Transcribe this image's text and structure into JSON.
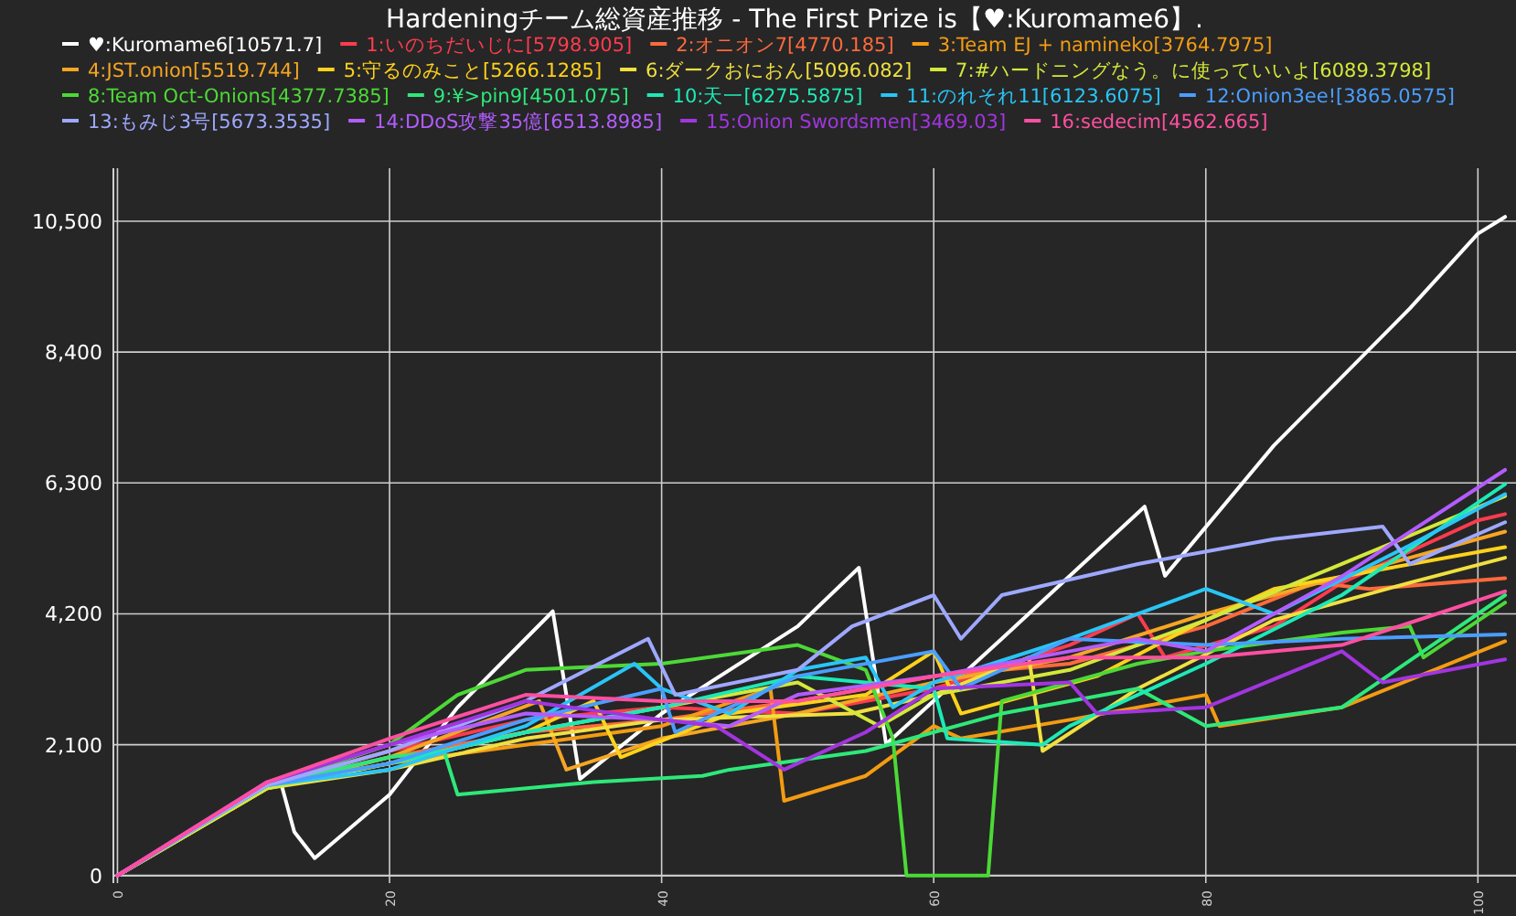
{
  "chart_data": {
    "type": "line",
    "title": "Hardeningチーム総資産推移 - The First Prize is【♥:Kuromame6】.",
    "legend": "top",
    "grid": true,
    "marker": "none",
    "line_style": "solid",
    "xlim": [
      -0.3,
      102.8
    ],
    "ylim": [
      -120,
      11350
    ],
    "xticks": [
      0,
      20,
      40,
      60,
      80,
      100
    ],
    "yticks": [
      0,
      {
        "value": 2100,
        "label": "2,100"
      },
      {
        "value": 4200,
        "label": "4,200"
      },
      {
        "value": 6300,
        "label": "6,300"
      },
      {
        "value": 8400,
        "label": "8,400"
      },
      {
        "value": 10500,
        "label": "10,500"
      }
    ],
    "series": [
      {
        "name": "♥:Kuromame6[10571.7]",
        "color": "#ffffff",
        "x": [
          0,
          11,
          12,
          13,
          14.5,
          20,
          25,
          32,
          34,
          40,
          50,
          54.5,
          56.5,
          65,
          75.5,
          77,
          85,
          95,
          100,
          102
        ],
        "values": [
          0,
          1450,
          1500,
          700,
          280,
          1300,
          2700,
          4240,
          1550,
          2600,
          4000,
          4940,
          2110,
          3800,
          5920,
          4810,
          6900,
          9100,
          10300,
          10570
        ]
      },
      {
        "name": "1:いのちだいじに[5798.905]",
        "color": "#ff3b4e",
        "x": [
          0,
          11,
          20,
          30,
          40,
          50,
          60,
          70,
          75,
          77,
          85,
          90,
          95,
          100,
          102
        ],
        "values": [
          0,
          1450,
          2000,
          2500,
          2700,
          2600,
          3000,
          3700,
          4200,
          3500,
          4000,
          4700,
          5200,
          5700,
          5800
        ]
      },
      {
        "name": "2:オニオン7[4770.185]",
        "color": "#ff6a3d",
        "x": [
          0,
          11,
          20,
          30,
          40,
          50,
          60,
          70,
          80,
          88,
          92,
          102
        ],
        "values": [
          0,
          1450,
          1900,
          2300,
          2500,
          2800,
          3200,
          3400,
          4000,
          4700,
          4600,
          4770
        ]
      },
      {
        "name": "3:Team EJ + namineko[3764.7975]",
        "color": "#f39c12",
        "x": [
          0,
          11,
          20,
          30,
          40,
          48,
          49,
          55,
          60,
          62,
          70,
          80,
          81,
          90,
          102
        ],
        "values": [
          0,
          1450,
          1800,
          2100,
          2400,
          3000,
          1200,
          1600,
          2400,
          2200,
          2500,
          2900,
          2400,
          2700,
          3760
        ]
      },
      {
        "name": "4:JST.onion[5519.744]",
        "color": "#f5a623",
        "x": [
          0,
          11,
          20,
          31,
          33,
          40,
          50,
          60,
          70,
          80,
          90,
          102
        ],
        "values": [
          0,
          1400,
          1900,
          2800,
          1700,
          2200,
          2600,
          3100,
          3500,
          4200,
          4800,
          5520
        ]
      },
      {
        "name": "5:守るのみこと[5266.1285]",
        "color": "#ffd21a",
        "x": [
          0,
          11,
          20,
          30,
          35,
          37,
          45,
          55,
          60,
          62,
          72,
          79,
          85,
          102
        ],
        "values": [
          0,
          1400,
          1800,
          2300,
          2800,
          1900,
          2600,
          2900,
          3600,
          2600,
          3200,
          4000,
          4600,
          5270
        ]
      },
      {
        "name": "6:ダークおにおん[5096.082]",
        "color": "#f0e040",
        "x": [
          0,
          11,
          20,
          30,
          40,
          54,
          60,
          67,
          68,
          75,
          85,
          95,
          102
        ],
        "values": [
          0,
          1400,
          1700,
          2200,
          2500,
          2600,
          2900,
          3500,
          2000,
          3000,
          4100,
          4700,
          5100
        ]
      },
      {
        "name": "7:#ハードニングなう。に使っていいよ[6089.3798]",
        "color": "#d4e83a",
        "x": [
          0,
          11,
          20,
          30,
          40,
          50,
          56,
          60,
          70,
          80,
          90,
          102
        ],
        "values": [
          0,
          1400,
          1800,
          2300,
          2700,
          3100,
          2400,
          2900,
          3300,
          4100,
          5000,
          6090
        ]
      },
      {
        "name": "8:Team Oct-Onions[4377.7385]",
        "color": "#4cd936",
        "x": [
          0,
          11,
          20,
          25,
          30,
          40,
          50,
          55,
          57,
          58,
          64,
          65,
          75,
          80,
          90,
          95,
          96,
          102
        ],
        "values": [
          0,
          1450,
          2100,
          2900,
          3300,
          3400,
          3700,
          3300,
          2200,
          0,
          0,
          2800,
          3400,
          3600,
          3900,
          4000,
          3500,
          4380
        ]
      },
      {
        "name": "9:¥>pin9[4501.075]",
        "color": "#2ee87a",
        "x": [
          0,
          11,
          20,
          24,
          25,
          35,
          43,
          45,
          55,
          65,
          75,
          80,
          90,
          102
        ],
        "values": [
          0,
          1450,
          1900,
          2000,
          1300,
          1500,
          1600,
          1700,
          2000,
          2600,
          3000,
          2400,
          2700,
          4500
        ]
      },
      {
        "name": "10:天一[6275.5875]",
        "color": "#1de9b6",
        "x": [
          0,
          11,
          20,
          30,
          40,
          50,
          60,
          61,
          68,
          70,
          80,
          90,
          102
        ],
        "values": [
          0,
          1450,
          1800,
          2300,
          2700,
          3200,
          3000,
          2200,
          2100,
          2400,
          3400,
          4500,
          6280
        ]
      },
      {
        "name": "11:のれそれ11[6123.6075]",
        "color": "#29c5f6",
        "x": [
          0,
          11,
          20,
          30,
          38,
          40,
          45,
          50,
          55,
          57,
          60,
          70,
          80,
          85,
          95,
          102
        ],
        "values": [
          0,
          1450,
          1700,
          2400,
          3400,
          3000,
          2600,
          3300,
          3500,
          2700,
          3100,
          3800,
          4600,
          4200,
          5300,
          6120
        ]
      },
      {
        "name": "12:Onion3ee![3865.0575]",
        "color": "#4a9eff",
        "x": [
          0,
          11,
          20,
          30,
          40,
          41,
          50,
          60,
          62,
          70,
          80,
          90,
          102
        ],
        "values": [
          0,
          1450,
          1800,
          2500,
          3000,
          2300,
          3200,
          3600,
          3000,
          3800,
          3700,
          3800,
          3870
        ]
      },
      {
        "name": "13:もみじ3号[5673.3535]",
        "color": "#9ea8ff",
        "x": [
          0,
          11,
          20,
          30,
          39,
          41,
          50,
          54,
          60,
          62,
          65,
          75,
          85,
          93,
          95,
          102
        ],
        "values": [
          0,
          1450,
          2000,
          2800,
          3800,
          2900,
          3300,
          4000,
          4500,
          3800,
          4500,
          5000,
          5400,
          5600,
          5000,
          5670
        ]
      },
      {
        "name": "14:DDoS攻撃35億[6513.8985]",
        "color": "#b35cff",
        "x": [
          0,
          11,
          20,
          30,
          40,
          45,
          50,
          60,
          70,
          75,
          80,
          90,
          102
        ],
        "values": [
          0,
          1500,
          2100,
          2600,
          2500,
          2400,
          2900,
          3200,
          3600,
          3800,
          3600,
          4800,
          6510
        ]
      },
      {
        "name": "15:Onion Swordsmen[3469.03]",
        "color": "#a235e0",
        "x": [
          0,
          11,
          20,
          30,
          40,
          44,
          49,
          55,
          60,
          70,
          72,
          80,
          90,
          93,
          102
        ],
        "values": [
          0,
          1500,
          2100,
          2800,
          2500,
          2400,
          1700,
          2300,
          3000,
          3100,
          2600,
          2700,
          3600,
          3100,
          3470
        ]
      },
      {
        "name": "16:sedecim[4562.665]",
        "color": "#ff4fa0",
        "x": [
          0,
          11,
          20,
          30,
          40,
          50,
          60,
          70,
          80,
          90,
          102
        ],
        "values": [
          0,
          1500,
          2200,
          2900,
          2800,
          2800,
          3200,
          3500,
          3500,
          3700,
          4560
        ]
      }
    ]
  }
}
